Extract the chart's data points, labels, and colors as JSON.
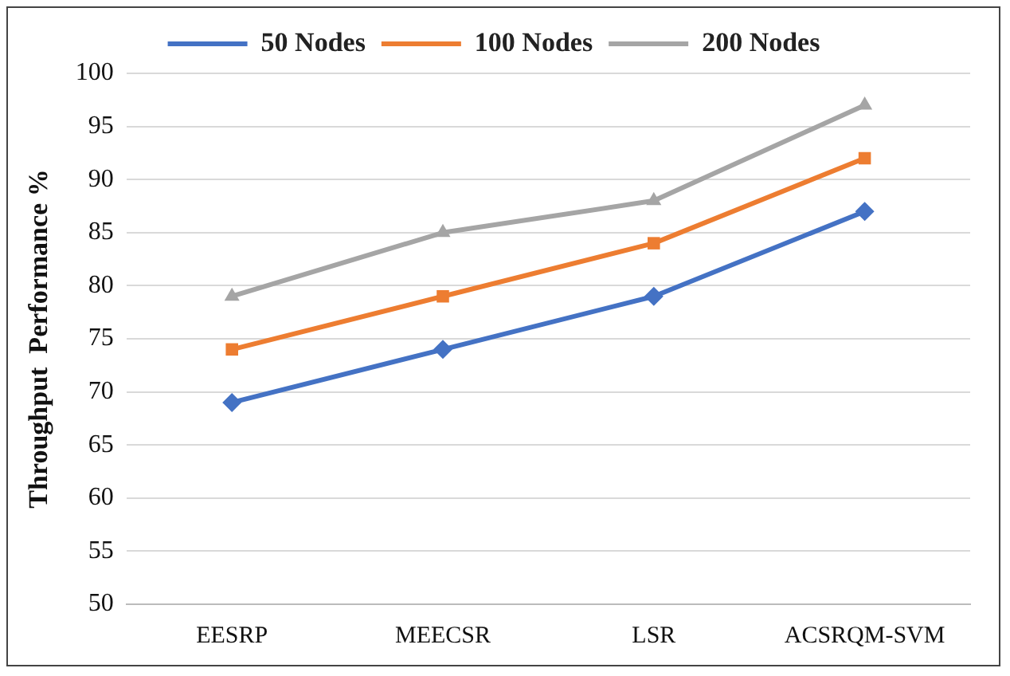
{
  "chart_data": {
    "type": "line",
    "ylabel": "Throughput  Performance %",
    "categories": [
      "EESRP",
      "MEECSR",
      "LSR",
      "ACSRQM-SVM"
    ],
    "series": [
      {
        "name": "50 Nodes",
        "color": "#4472c4",
        "marker": "diamond",
        "values": [
          69,
          74,
          79,
          87
        ]
      },
      {
        "name": "100 Nodes",
        "color": "#ed7d31",
        "marker": "square",
        "values": [
          74,
          79,
          84,
          92
        ]
      },
      {
        "name": "200 Nodes",
        "color": "#a5a5a5",
        "marker": "triangle",
        "values": [
          79,
          85,
          88,
          97
        ]
      }
    ],
    "ylim": [
      50,
      100
    ],
    "yticks": [
      50,
      55,
      60,
      65,
      70,
      75,
      80,
      85,
      90,
      95,
      100
    ],
    "grid": "y",
    "legend": "top",
    "line_style": "solid"
  }
}
